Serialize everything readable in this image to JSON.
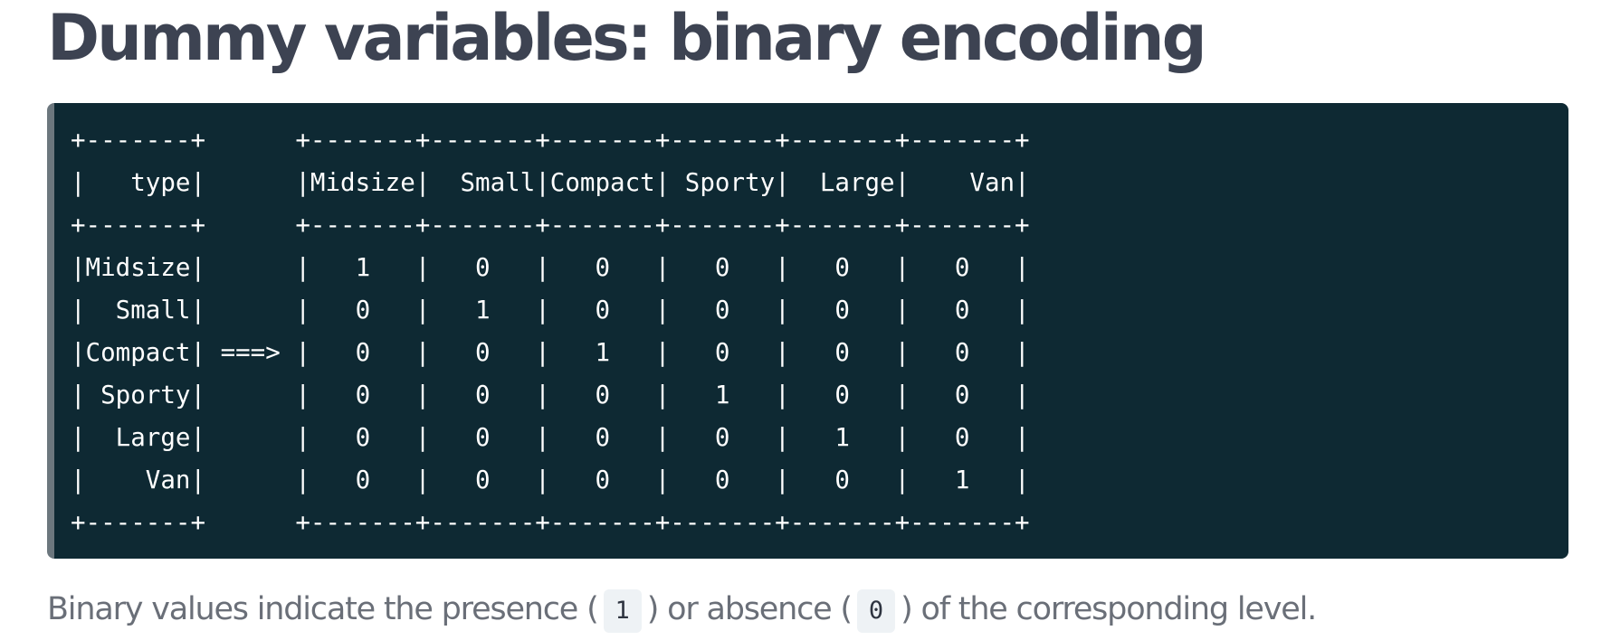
{
  "title": "Dummy variables: binary encoding",
  "code": {
    "lines": [
      "+-------+      +-------+-------+-------+-------+-------+-------+",
      "|   type|      |Midsize|  Small|Compact| Sporty|  Large|    Van|",
      "+-------+      +-------+-------+-------+-------+-------+-------+",
      "|Midsize|      |   1   |   0   |   0   |   0   |   0   |   0   |",
      "|  Small|      |   0   |   1   |   0   |   0   |   0   |   0   |",
      "|Compact| ===> |   0   |   0   |   1   |   0   |   0   |   0   |",
      "| Sporty|      |   0   |   0   |   0   |   1   |   0   |   0   |",
      "|  Large|      |   0   |   0   |   0   |   0   |   1   |   0   |",
      "|    Van|      |   0   |   0   |   0   |   0   |   0   |   1   |",
      "+-------+      +-------+-------+-------+-------+-------+-------+"
    ]
  },
  "caption": {
    "part1": "Binary values indicate the presence (",
    "code1": "1",
    "part2": ") or absence (",
    "code2": "0",
    "part3": ") of the corresponding level."
  },
  "colors": {
    "title": "#3d4352",
    "code_background": "#0e2933",
    "code_border": "#6c777e",
    "code_text": "#ffffff",
    "caption_text": "#6a6f78",
    "inline_code_background": "#eef2f5"
  }
}
